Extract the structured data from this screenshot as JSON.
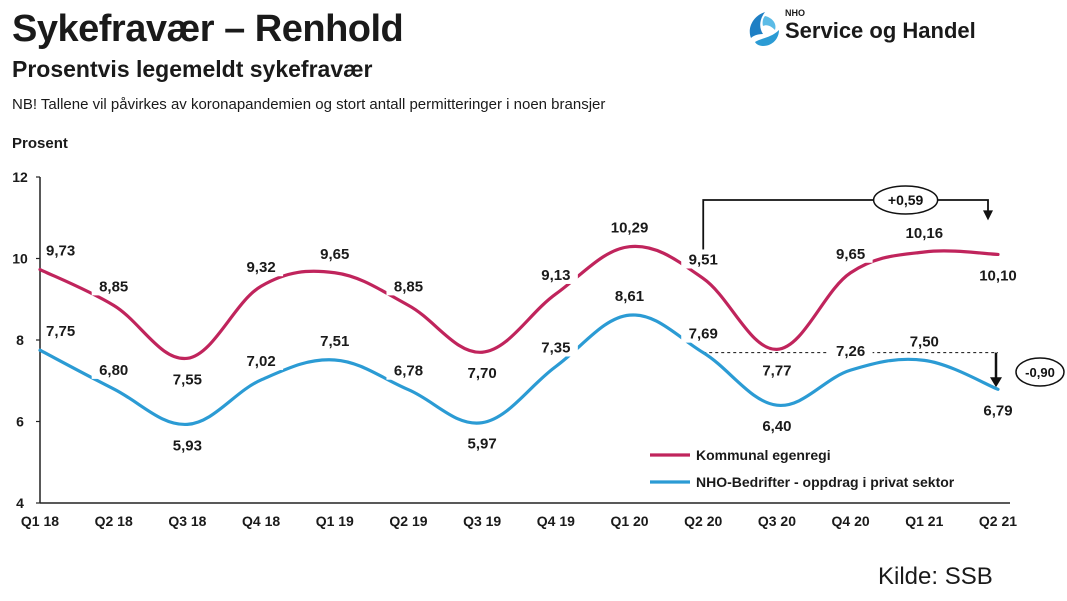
{
  "header": {
    "title": "Sykefravær – Renhold",
    "subtitle": "Prosentvis legemeldt sykefravær",
    "note": "NB! Tallene vil påvirkes av koronapandemien og stort antall permitteringer i noen bransjer"
  },
  "logo": {
    "small": "NHO",
    "name": "Service og Handel"
  },
  "source": "Kilde: SSB",
  "colors": {
    "kommunal": "#c0245c",
    "nho": "#2b9bd4"
  },
  "chart_data": {
    "type": "line",
    "ylabel": "Prosent",
    "ylim": [
      4,
      12
    ],
    "yticks": [
      4,
      6,
      8,
      10,
      12
    ],
    "categories": [
      "Q1 18",
      "Q2 18",
      "Q3 18",
      "Q4 18",
      "Q1 19",
      "Q2 19",
      "Q3 19",
      "Q4 19",
      "Q1 20",
      "Q2 20",
      "Q3 20",
      "Q4 20",
      "Q1 21",
      "Q2 21"
    ],
    "series": [
      {
        "name": "Kommunal egenregi",
        "values": [
          9.73,
          8.85,
          7.55,
          9.32,
          9.65,
          8.85,
          7.7,
          9.13,
          10.29,
          9.51,
          7.77,
          9.65,
          10.16,
          10.1
        ],
        "labels": [
          "9,73",
          "8,85",
          "7,55",
          "9,32",
          "9,65",
          "8,85",
          "7,70",
          "9,13",
          "10,29",
          "9,51",
          "7,77",
          "9,65",
          "10,16",
          "10,10"
        ]
      },
      {
        "name": "NHO-Bedrifter - oppdrag i privat sektor",
        "values": [
          7.75,
          6.8,
          5.93,
          7.02,
          7.51,
          6.78,
          5.97,
          7.35,
          8.61,
          7.69,
          6.4,
          7.26,
          7.5,
          6.79
        ],
        "labels": [
          "7,75",
          "6,80",
          "5,93",
          "7,02",
          "7,51",
          "6,78",
          "5,97",
          "7,35",
          "8,61",
          "7,69",
          "6,40",
          "7,26",
          "7,50",
          "6,79"
        ]
      }
    ],
    "annotations": [
      {
        "text": "+0,59",
        "from": "Q2 20",
        "to": "Q2 21",
        "series": "Kommunal egenregi"
      },
      {
        "text": "-0,90",
        "from": "Q2 20",
        "to": "Q2 21",
        "series": "NHO-Bedrifter - oppdrag i privat sektor"
      }
    ],
    "legend_position": "bottom-right"
  }
}
